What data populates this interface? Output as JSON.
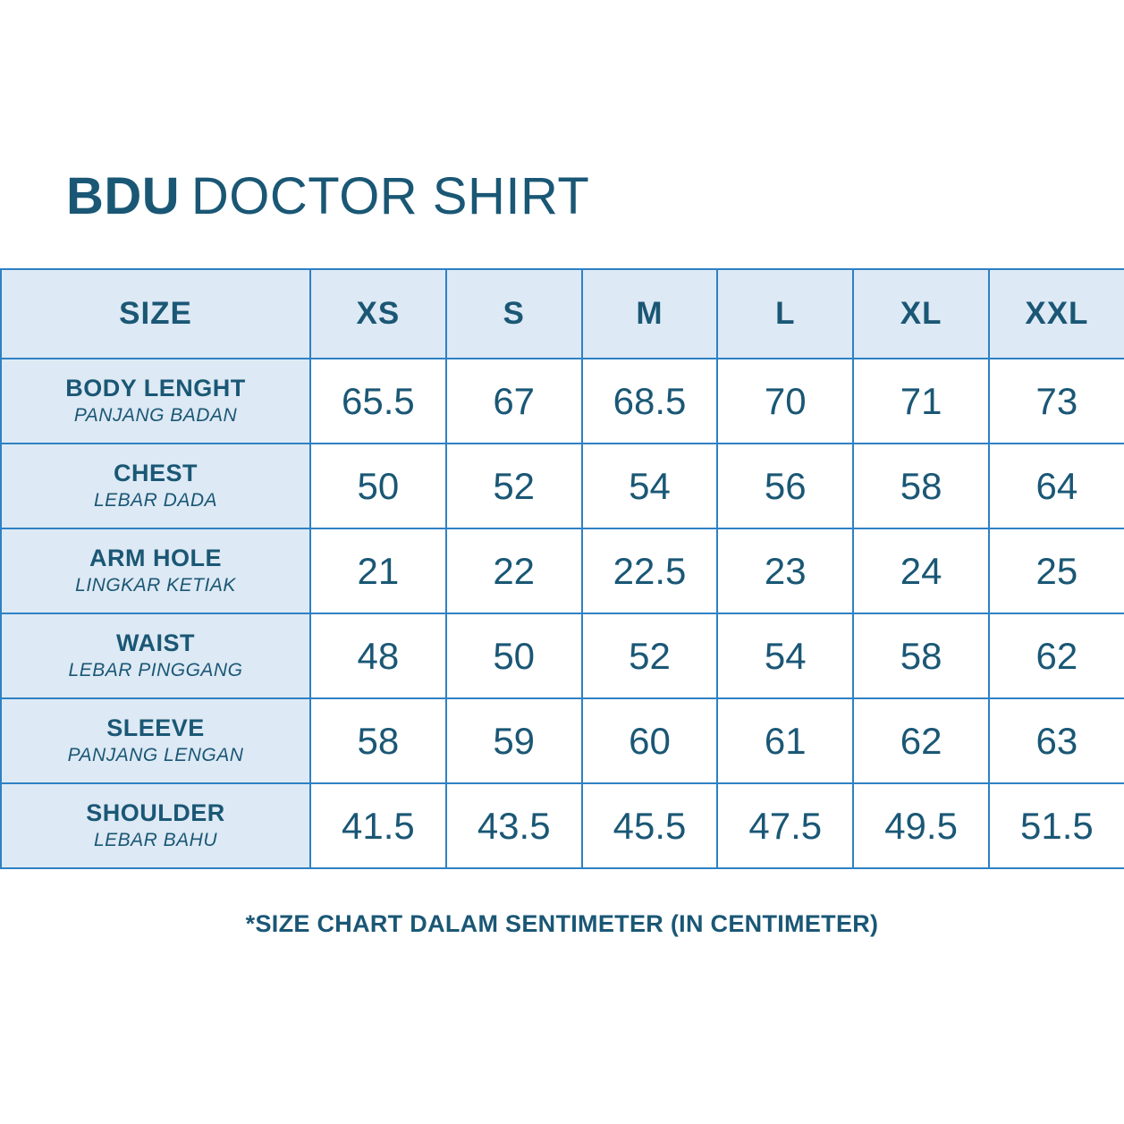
{
  "page": {
    "title_bold": "BDU",
    "title_rest": "DOCTOR SHIRT",
    "footnote": "*SIZE CHART DALAM SENTIMETER (IN CENTIMETER)"
  },
  "colors": {
    "text_dark_teal": "#1a5775",
    "table_border_blue": "#2e81c4",
    "header_background": "#dde9f4",
    "cell_background": "#ffffff"
  },
  "chart_data": {
    "type": "table",
    "title": "BDU DOCTOR SHIRT",
    "unit_note": "*SIZE CHART DALAM SENTIMETER (IN CENTIMETER)",
    "columns": [
      "SIZE",
      "XS",
      "S",
      "M",
      "L",
      "XL",
      "XXL"
    ],
    "rows": [
      {
        "label": "BODY LENGHT",
        "sublabel": "PANJANG BADAN",
        "values": [
          "65.5",
          "67",
          "68.5",
          "70",
          "71",
          "73"
        ]
      },
      {
        "label": "CHEST",
        "sublabel": "LEBAR DADA",
        "values": [
          "50",
          "52",
          "54",
          "56",
          "58",
          "64"
        ]
      },
      {
        "label": "ARM HOLE",
        "sublabel": "LINGKAR KETIAK",
        "values": [
          "21",
          "22",
          "22.5",
          "23",
          "24",
          "25"
        ]
      },
      {
        "label": "WAIST",
        "sublabel": "LEBAR PINGGANG",
        "values": [
          "48",
          "50",
          "52",
          "54",
          "58",
          "62"
        ]
      },
      {
        "label": "SLEEVE",
        "sublabel": "PANJANG LENGAN",
        "values": [
          "58",
          "59",
          "60",
          "61",
          "62",
          "63"
        ]
      },
      {
        "label": "SHOULDER",
        "sublabel": "LEBAR BAHU",
        "values": [
          "41.5",
          "43.5",
          "45.5",
          "47.5",
          "49.5",
          "51.5"
        ]
      }
    ]
  }
}
